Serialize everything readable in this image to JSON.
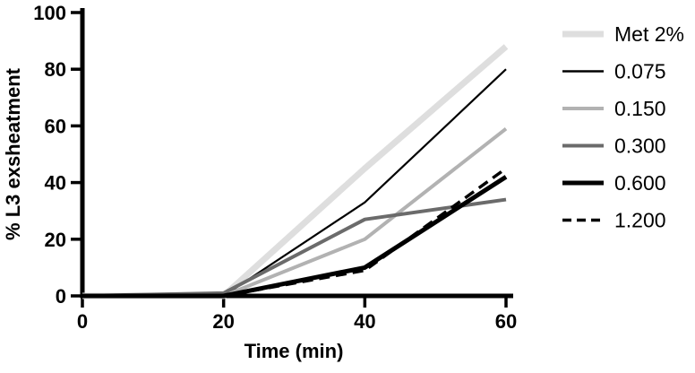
{
  "chart_data": {
    "type": "line",
    "title": "",
    "xlabel": "Time (min)",
    "ylabel": "% L3 exsheatment",
    "x": [
      0,
      20,
      40,
      60
    ],
    "xlim": [
      0,
      60
    ],
    "ylim": [
      0,
      100
    ],
    "x_ticks": [
      0,
      20,
      40,
      60
    ],
    "y_ticks": [
      0,
      20,
      40,
      60,
      80,
      100
    ],
    "grid": false,
    "legend_position": "right",
    "axis_color": "#000000",
    "series": [
      {
        "name": "Met 2%",
        "values": [
          0,
          0,
          45,
          88
        ],
        "color": "#dedede",
        "width": 7,
        "dash": ""
      },
      {
        "name": "0.075",
        "values": [
          0,
          0,
          33,
          80
        ],
        "color": "#000000",
        "width": 2.2,
        "dash": ""
      },
      {
        "name": "0.150",
        "values": [
          0,
          0,
          20,
          59
        ],
        "color": "#b2b2b2",
        "width": 4,
        "dash": ""
      },
      {
        "name": "0.300",
        "values": [
          0,
          1,
          27,
          34
        ],
        "color": "#6b6b6b",
        "width": 4,
        "dash": ""
      },
      {
        "name": "0.600",
        "values": [
          0,
          0,
          10,
          42
        ],
        "color": "#000000",
        "width": 5,
        "dash": ""
      },
      {
        "name": "1.200",
        "values": [
          0,
          0,
          9,
          45
        ],
        "color": "#000000",
        "width": 3.5,
        "dash": "12,7"
      }
    ]
  }
}
